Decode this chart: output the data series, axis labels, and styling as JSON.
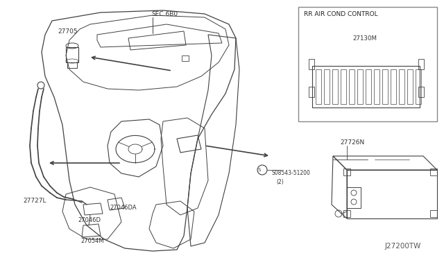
{
  "bg_color": "#ffffff",
  "line_color": "#404040",
  "text_color": "#333333",
  "diagram_code": "J27200TW",
  "label_27705": "27705",
  "label_sec": "SEC.6B0",
  "label_27727L": "27727L",
  "label_27046D": "27046D",
  "label_27046DA": "27046DA",
  "label_27054M": "27054M",
  "label_rr": "RR AIR COND CONTROL",
  "label_27130M": "27130M",
  "label_27726N": "27726N",
  "label_screw": "S08543-51200",
  "label_screw2": "(2)"
}
